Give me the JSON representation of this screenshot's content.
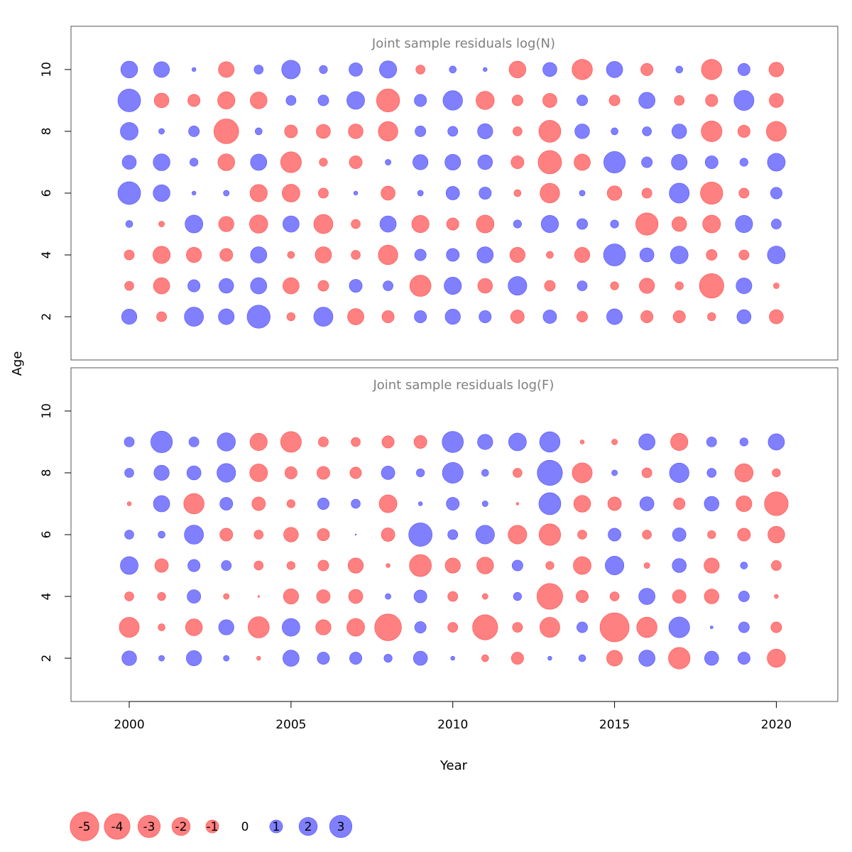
{
  "chart_data": {
    "type": "scatter",
    "xlabel": "Year",
    "ylabel": "Age",
    "x_ticks": [
      2000,
      2005,
      2010,
      2015,
      2020
    ],
    "y_ticks": [
      2,
      4,
      6,
      8,
      10
    ],
    "xlim": [
      1998.2,
      2021.9
    ],
    "ylim": [
      0.6,
      11.4
    ],
    "colors": {
      "negative": "#ff8080",
      "positive": "#8080ff",
      "negative_edge": "#ff5050",
      "positive_edge": "#5050ff"
    },
    "legend": {
      "placement": "bottom-left",
      "entries": [
        {
          "value": -5,
          "label": "-5"
        },
        {
          "value": -4,
          "label": "-4"
        },
        {
          "value": -3,
          "label": "-3"
        },
        {
          "value": -2,
          "label": "-2"
        },
        {
          "value": -1,
          "label": "-1"
        },
        {
          "value": 0,
          "label": "0"
        },
        {
          "value": 1,
          "label": "1"
        },
        {
          "value": 2,
          "label": "2"
        },
        {
          "value": 3,
          "label": "3"
        }
      ]
    },
    "panels": [
      {
        "title": "Joint sample residuals log(N)",
        "ages": [
          10,
          9,
          8,
          7,
          6,
          5,
          4,
          3,
          2
        ],
        "years": [
          2000,
          2001,
          2002,
          2003,
          2004,
          2005,
          2006,
          2007,
          2008,
          2009,
          2010,
          2011,
          2012,
          2013,
          2014,
          2015,
          2016,
          2017,
          2018,
          2019,
          2020
        ],
        "residuals": [
          [
            1.7,
            1.5,
            0.1,
            -1.5,
            0.5,
            2.1,
            0.4,
            1.1,
            1.8,
            -0.5,
            0.3,
            0.1,
            -1.7,
            1.2,
            -2.5,
            1.6,
            -0.9,
            0.3,
            -2.5,
            0.9,
            -1.3
          ],
          [
            3.1,
            -1.3,
            -0.9,
            -1.8,
            -1.7,
            0.6,
            0.7,
            1.9,
            -3.2,
            0.9,
            2.3,
            -2.0,
            -0.7,
            -1.2,
            0.7,
            -0.7,
            1.6,
            -0.6,
            -0.9,
            2.4,
            -1.2
          ],
          [
            1.9,
            0.2,
            0.7,
            -3.7,
            0.3,
            -1.0,
            -1.2,
            -1.3,
            -2.3,
            0.7,
            0.6,
            1.4,
            -0.5,
            -2.9,
            1.3,
            0.3,
            0.5,
            1.3,
            -2.6,
            -0.9,
            -2.4
          ],
          [
            1.2,
            1.7,
            0.4,
            -1.7,
            1.6,
            -2.6,
            -0.4,
            -1.0,
            0.2,
            1.4,
            1.5,
            1.3,
            -1.0,
            -3.3,
            -1.6,
            2.8,
            0.7,
            1.5,
            1.0,
            0.4,
            1.9
          ],
          [
            3.1,
            1.7,
            0.1,
            0.2,
            -1.8,
            -1.9,
            -0.6,
            0.1,
            -1.2,
            0.2,
            1.1,
            0.9,
            -0.3,
            -2.3,
            0.2,
            -1.3,
            -0.6,
            2.4,
            -3.0,
            -0.6,
            0.8
          ],
          [
            0.3,
            -0.2,
            1.9,
            -1.4,
            -2.0,
            1.6,
            -2.2,
            -0.5,
            1.6,
            -1.8,
            -0.9,
            -1.9,
            0.4,
            1.8,
            0.7,
            0.4,
            -3.0,
            -1.3,
            -1.9,
            1.8,
            0.6
          ],
          [
            -0.6,
            -1.8,
            -1.4,
            -1.0,
            1.6,
            -0.3,
            -1.6,
            -0.5,
            -2.3,
            0.8,
            1.0,
            1.6,
            -1.4,
            -0.3,
            -1.4,
            2.9,
            1.2,
            1.9,
            -0.7,
            -0.6,
            1.9
          ],
          [
            -0.5,
            -1.6,
            0.9,
            1.3,
            1.6,
            -1.6,
            -0.7,
            1.0,
            0.6,
            -2.7,
            1.8,
            -1.3,
            2.1,
            -0.7,
            0.6,
            -0.4,
            -1.4,
            -0.4,
            -3.6,
            1.5,
            -0.2
          ],
          [
            1.4,
            -0.6,
            2.2,
            1.5,
            3.2,
            -0.4,
            2.2,
            -1.6,
            -0.9,
            0.9,
            1.4,
            0.9,
            -1.1,
            1.1,
            -0.7,
            1.5,
            -0.9,
            -0.9,
            -0.4,
            1.2,
            -1.2
          ]
        ]
      },
      {
        "title": "Joint sample residuals log(F)",
        "ages": [
          9,
          8,
          7,
          6,
          5,
          4,
          3,
          2
        ],
        "years": [
          2000,
          2001,
          2002,
          2003,
          2004,
          2005,
          2006,
          2007,
          2008,
          2009,
          2010,
          2011,
          2012,
          2013,
          2014,
          2015,
          2016,
          2017,
          2018,
          2019,
          2020
        ],
        "residuals": [
          [
            0.6,
            2.8,
            0.6,
            2.0,
            -1.8,
            -2.6,
            -0.6,
            -0.5,
            -0.9,
            -1.0,
            2.7,
            1.4,
            1.9,
            2.5,
            -0.1,
            -0.2,
            1.6,
            -1.8,
            0.6,
            0.4,
            1.6
          ],
          [
            0.5,
            1.4,
            1.2,
            2.1,
            -1.9,
            -0.9,
            -1.0,
            -0.8,
            1.1,
            0.4,
            2.6,
            0.3,
            -0.5,
            3.8,
            -2.4,
            0.2,
            -0.6,
            2.3,
            0.5,
            -2.0,
            -0.4
          ],
          [
            -0.1,
            1.6,
            -2.5,
            1.0,
            -1.1,
            -0.4,
            0.8,
            0.5,
            -1.9,
            0.1,
            1.0,
            0.2,
            -0.04,
            2.9,
            -1.7,
            -1.1,
            1.2,
            -0.8,
            1.3,
            -1.5,
            -3.4
          ],
          [
            0.5,
            0.3,
            2.2,
            -1.0,
            -0.5,
            -1.3,
            -0.9,
            0.01,
            -1.1,
            3.3,
            0.6,
            2.1,
            -2.1,
            -2.8,
            -0.5,
            1.0,
            -0.5,
            1.1,
            -0.4,
            -1.0,
            -1.7
          ],
          [
            1.9,
            -1.1,
            0.9,
            0.6,
            -0.5,
            -0.4,
            -0.7,
            -1.4,
            -0.1,
            -2.9,
            -1.4,
            -1.7,
            0.7,
            -0.4,
            -1.9,
            2.1,
            -0.2,
            1.2,
            -1.4,
            0.3,
            -0.6
          ],
          [
            -0.5,
            -0.4,
            1.1,
            -0.2,
            -0.02,
            -1.4,
            -1.1,
            -1.2,
            0.2,
            1.0,
            -0.6,
            -0.2,
            0.4,
            -4.0,
            -0.9,
            -0.5,
            1.6,
            -1.1,
            -1.3,
            0.7,
            -0.1
          ],
          [
            -2.4,
            -0.3,
            -1.7,
            1.4,
            -2.7,
            1.9,
            -1.4,
            -1.9,
            -4.3,
            0.8,
            -0.6,
            -3.8,
            -0.6,
            -2.4,
            0.7,
            -5.1,
            -2.5,
            2.6,
            0.05,
            0.7,
            -0.7
          ],
          [
            1.3,
            0.2,
            1.4,
            0.2,
            -0.1,
            1.6,
            0.9,
            0.9,
            0.4,
            1.2,
            0.1,
            -0.3,
            -0.9,
            0.1,
            0.3,
            -1.5,
            1.6,
            -2.8,
            1.2,
            0.9,
            -2.0
          ]
        ]
      }
    ]
  }
}
